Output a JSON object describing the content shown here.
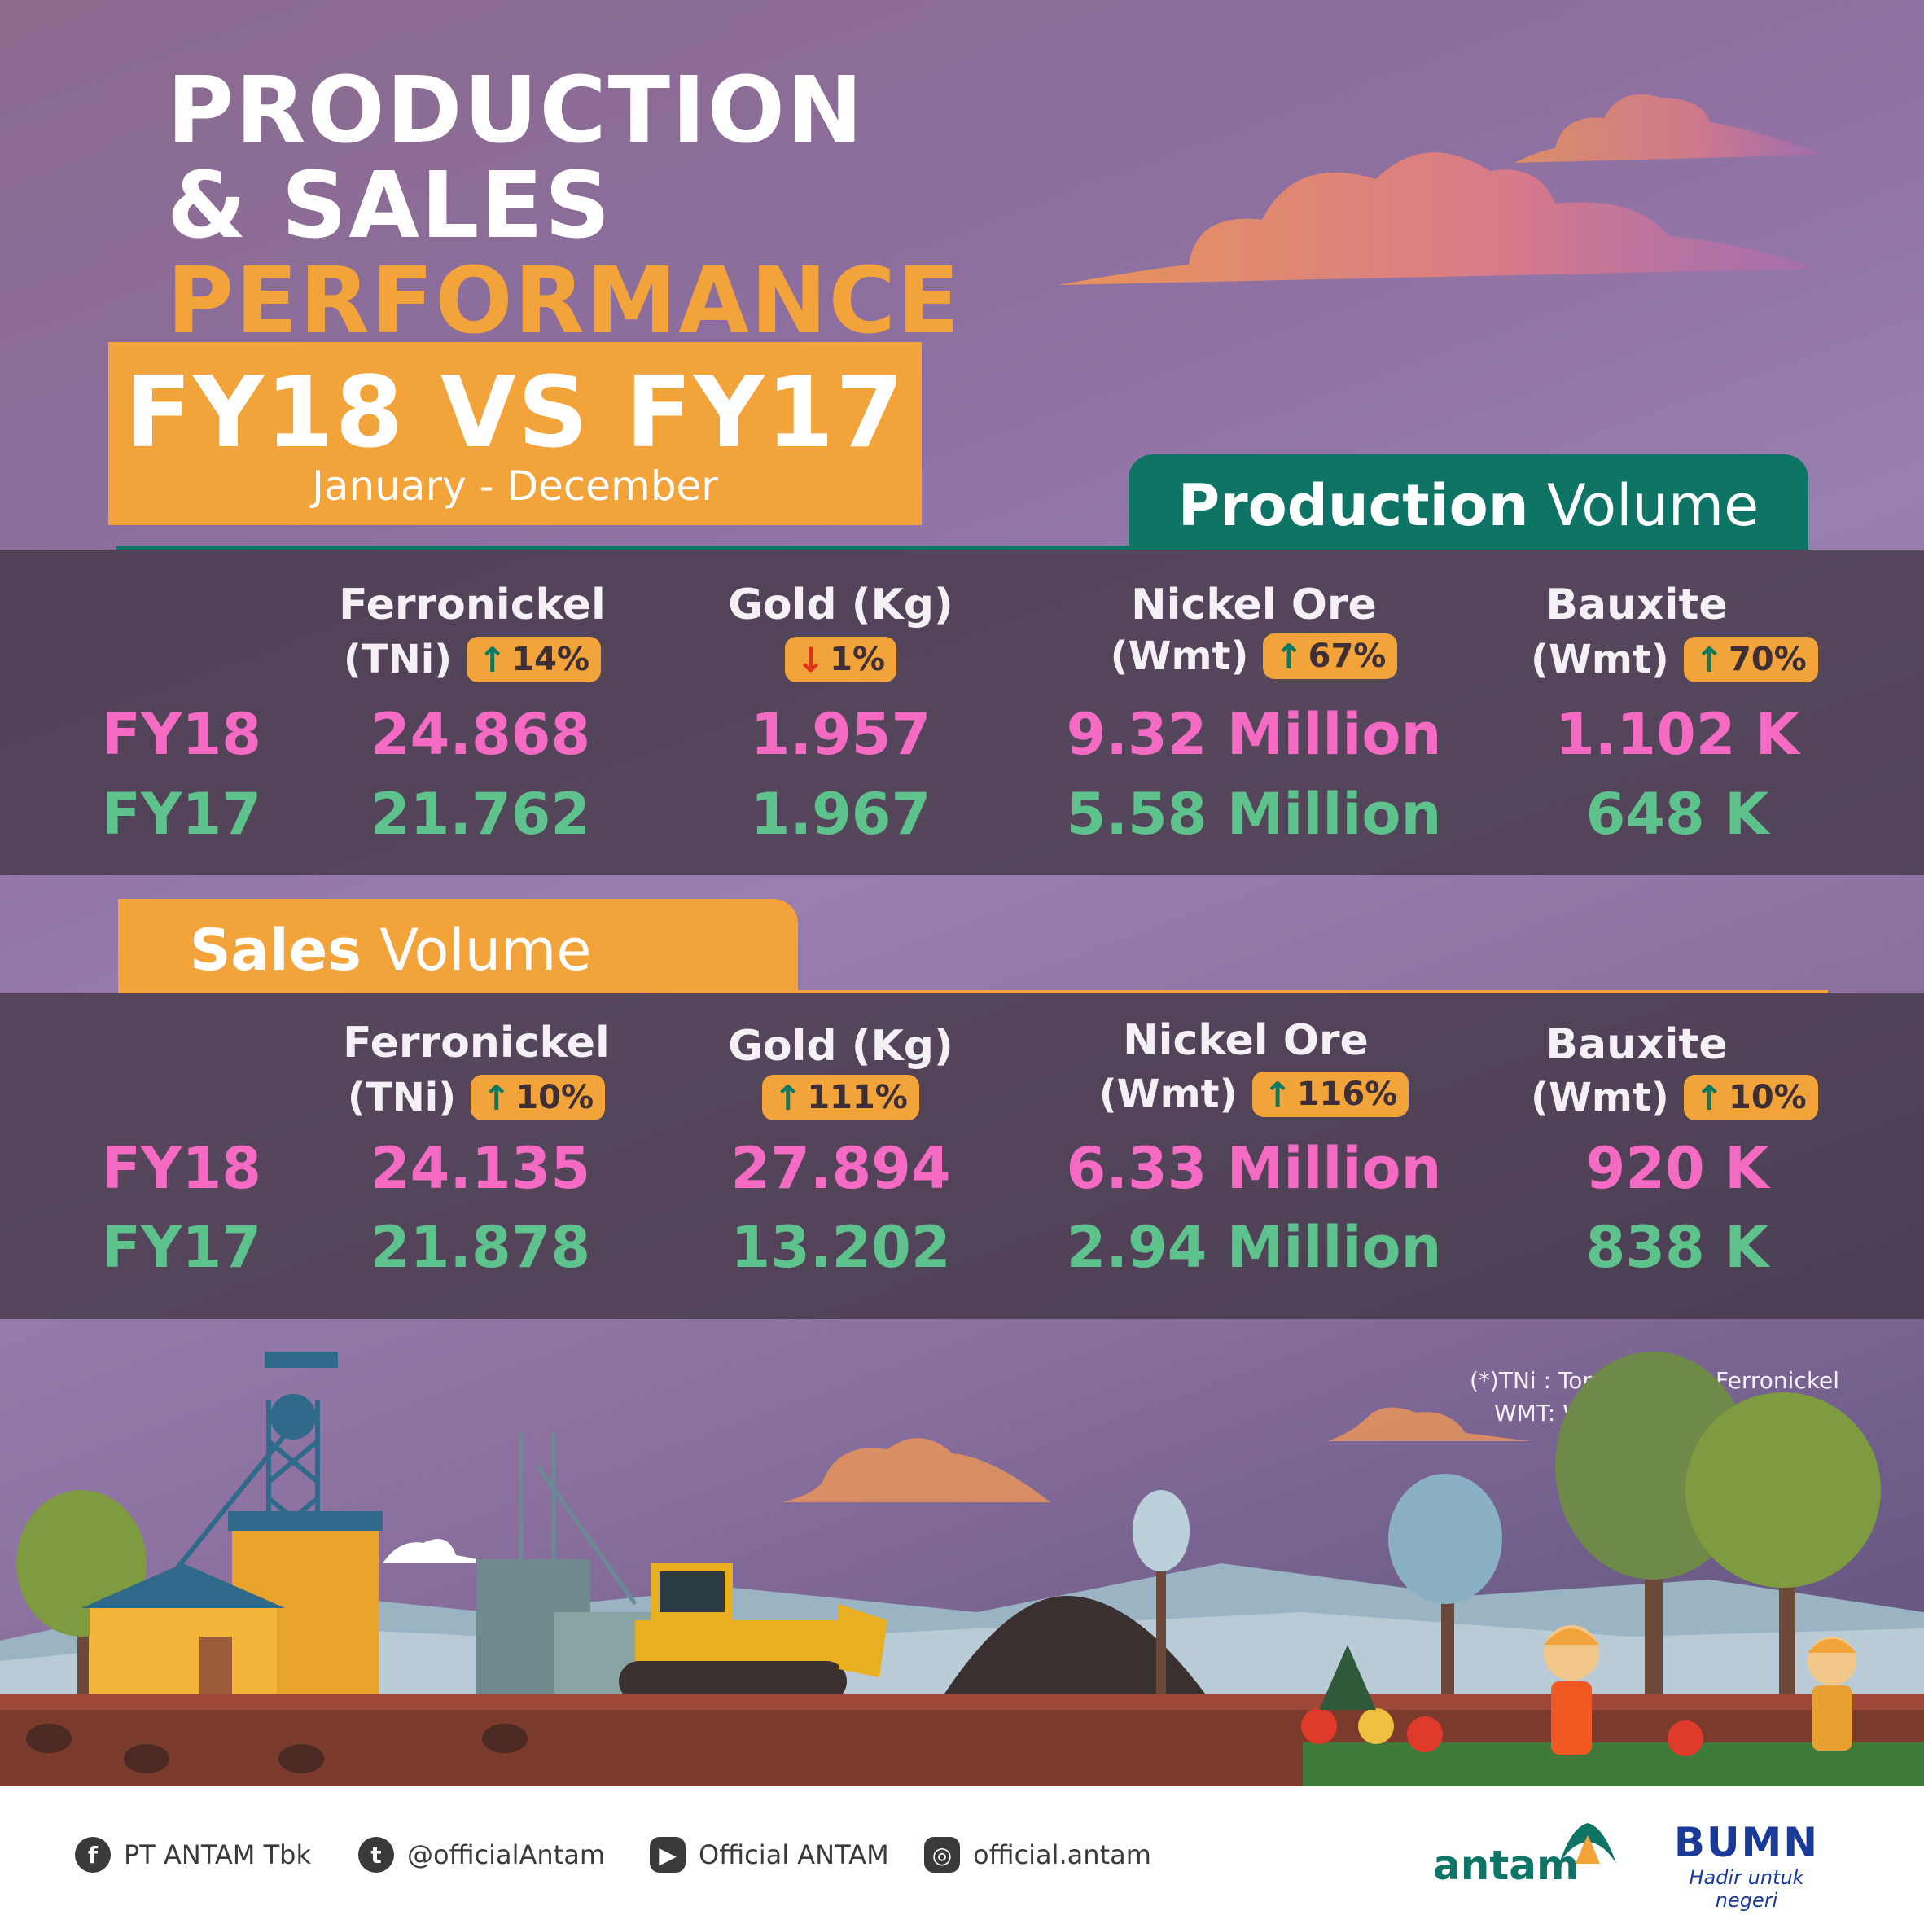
{
  "title": {
    "line1": "PRODUCTION",
    "line2": "& SALES",
    "line3": "PERFORMANCE",
    "period_box": "FY18 VS FY17",
    "period_sub": "January - December"
  },
  "production": {
    "tab_bold": "Production",
    "tab_light": "Volume",
    "columns": [
      {
        "name": "Ferronickel",
        "unit": "(TNi)",
        "change": "14%",
        "direction": "up",
        "fy18": "24.868",
        "fy17": "21.762"
      },
      {
        "name": "Gold (Kg)",
        "unit": "",
        "change": "1%",
        "direction": "down",
        "fy18": "1.957",
        "fy17": "1.967"
      },
      {
        "name": "Nickel Ore",
        "unit": "(Wmt)",
        "change": "67%",
        "direction": "up",
        "fy18": "9.32 Million",
        "fy17": "5.58 Million"
      },
      {
        "name": "Bauxite",
        "unit": "(Wmt)",
        "change": "70%",
        "direction": "up",
        "fy18": "1.102 K",
        "fy17": "648 K"
      }
    ]
  },
  "sales": {
    "tab_bold": "Sales",
    "tab_light": "Volume",
    "columns": [
      {
        "name": "Ferronickel",
        "unit": "(TNi)",
        "change": "10%",
        "direction": "up",
        "fy18": "24.135",
        "fy17": "21.878"
      },
      {
        "name": "Gold (Kg)",
        "unit": "",
        "change": "111%",
        "direction": "up",
        "fy18": "27.894",
        "fy17": "13.202"
      },
      {
        "name": "Nickel Ore",
        "unit": "(Wmt)",
        "change": "116%",
        "direction": "up",
        "fy18": "6.33 Million",
        "fy17": "2.94 Million"
      },
      {
        "name": "Bauxite",
        "unit": "(Wmt)",
        "change": "10%",
        "direction": "up",
        "fy18": "920 K",
        "fy17": "838 K"
      }
    ]
  },
  "row_labels": {
    "fy18": "FY18",
    "fy17": "FY17"
  },
  "footnote": {
    "line1": "(*)TNi : Ton Nickel on Ferronickel",
    "line2": "WMT: Wet Metric Ton"
  },
  "footer": {
    "facebook": "PT ANTAM Tbk",
    "twitter": "@officialAntam",
    "youtube": "Official ANTAM",
    "instagram": "official.antam",
    "brand": "antam",
    "bumn": "BUMN",
    "bumn_tagline": "Hadir untuk negeri"
  },
  "colors": {
    "orange": "#f2a33a",
    "teal": "#0e7466",
    "fy18_pink": "#f56bc4",
    "fy17_green": "#5ec28d",
    "arrow_up": "#0b7a64",
    "arrow_down": "#e0301e"
  },
  "icons": [
    "facebook-icon",
    "twitter-icon",
    "youtube-icon",
    "instagram-icon",
    "arrow-up-icon",
    "arrow-down-icon"
  ]
}
